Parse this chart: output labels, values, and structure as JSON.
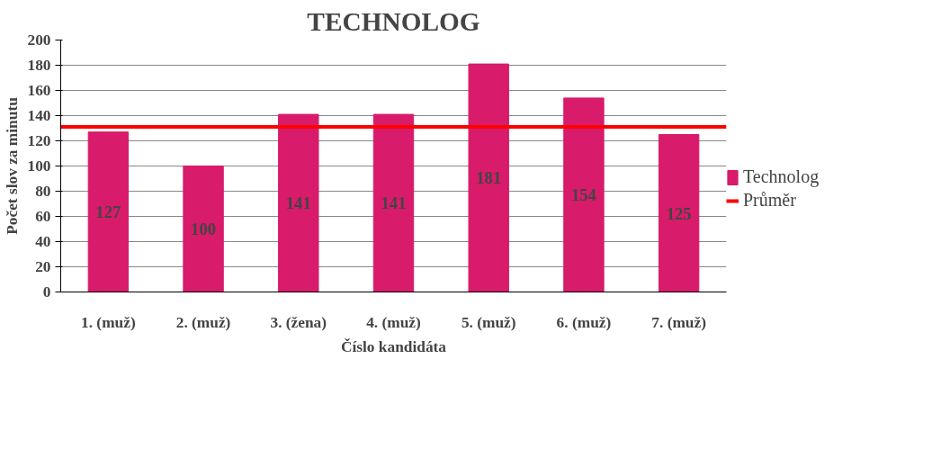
{
  "chart_data": {
    "type": "bar",
    "title": "TECHNOLOG",
    "xlabel": "Číslo kandidáta",
    "ylabel": "Počet slov za minutu",
    "categories": [
      "1. (muž)",
      "2. (muž)",
      "3. (žena)",
      "4. (muž)",
      "5. (muž)",
      "6. (muž)",
      "7. (muž)"
    ],
    "series": [
      {
        "name": "Technolog",
        "color": "#d81b6a",
        "values": [
          127,
          100,
          141,
          141,
          181,
          154,
          125
        ]
      }
    ],
    "ref_lines": [
      {
        "axis": "y",
        "value": 131,
        "label": "Průměr",
        "color": "#ff0000"
      }
    ],
    "ylim": [
      0,
      200
    ],
    "yticks": [
      0,
      20,
      40,
      60,
      80,
      100,
      120,
      140,
      160,
      180,
      200
    ],
    "grid": "y",
    "legend": "right",
    "data_labels": true
  }
}
